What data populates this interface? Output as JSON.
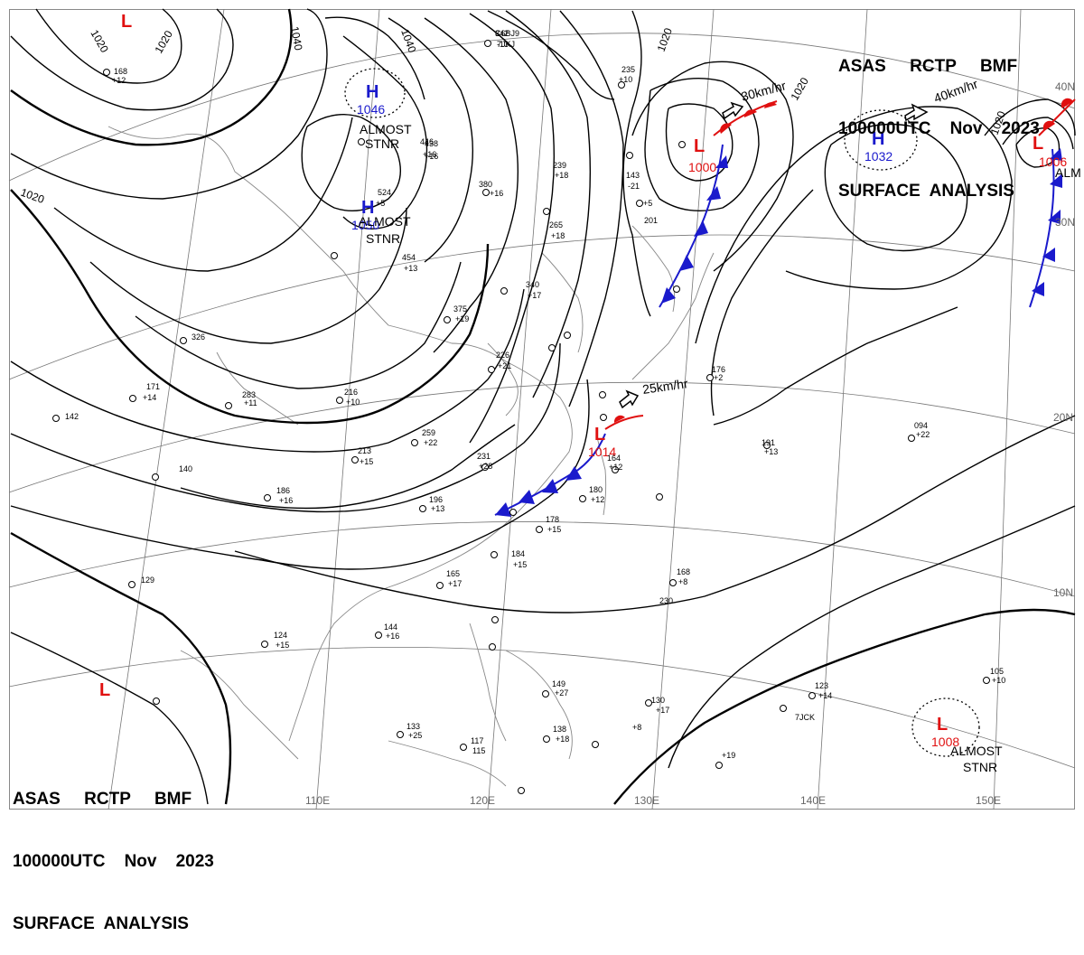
{
  "header_top": {
    "line1": "ASAS     RCTP     BMF",
    "line2": "100000UTC    Nov    2023",
    "line3": "SURFACE  ANALYSIS"
  },
  "header_bottom": {
    "line1": "ASAS     RCTP     BMF",
    "line2": "100000UTC    Nov    2023",
    "line3": "SURFACE  ANALYSIS"
  },
  "pressure_centers": [
    {
      "type": "H",
      "value": "1046",
      "color": "#1a1acc"
    },
    {
      "type": "H",
      "value": "1050",
      "color": "#1a1acc"
    },
    {
      "type": "H",
      "value": "1032",
      "color": "#1a1acc"
    },
    {
      "type": "L",
      "value": "1000",
      "color": "#e01010"
    },
    {
      "type": "L",
      "value": "1014",
      "color": "#e01010"
    },
    {
      "type": "L",
      "value": "1006",
      "color": "#e01010"
    },
    {
      "type": "L",
      "value": "1008",
      "color": "#e01010"
    },
    {
      "type": "L",
      "value": "",
      "color": "#e01010"
    },
    {
      "type": "L",
      "value": "",
      "color": "#e01010"
    }
  ],
  "annotations": {
    "almost_stnr_1": [
      "ALMOST",
      "STNR"
    ],
    "almost_stnr_2": [
      "ALMOST",
      "STNR"
    ],
    "almost_stnr_3": [
      "ALMOST",
      "STNR"
    ],
    "almost_stnr_4": "ALM",
    "speed_1": "30km/hr",
    "speed_2": "40km/hr",
    "speed_3": "25km/hr"
  },
  "isobar_labels": [
    "1020",
    "1020",
    "1040",
    "1040",
    "1020",
    "1020",
    "1020",
    "1020"
  ],
  "lat_labels": [
    "40N",
    "30N",
    "20N",
    "10N"
  ],
  "lon_labels": [
    "110E",
    "120E",
    "130E",
    "140E",
    "150E"
  ],
  "station_values": [
    "342",
    "-13",
    "446",
    "+16",
    "438",
    "+16",
    "524",
    "+5",
    "454",
    "+13",
    "380",
    "+16",
    "239",
    "+18",
    "265",
    "+18",
    "375",
    "+19",
    "340",
    "+17",
    "326",
    "283",
    "+11",
    "216",
    "+10",
    "259",
    "+22",
    "231",
    "+28",
    "213",
    "+15",
    "196",
    "+13",
    "186",
    "+16",
    "171",
    "+14",
    "142",
    "140",
    "226",
    "+21",
    "180",
    "+12",
    "164",
    "+12",
    "178",
    "+15",
    "184",
    "+15",
    "165",
    "+17",
    "168",
    "+8",
    "144",
    "+16",
    "124",
    "+15",
    "129",
    "+19",
    "117",
    "115",
    "133",
    "+25",
    "149",
    "+27",
    "138",
    "+18",
    "130",
    "+17",
    "123",
    "+14",
    "105",
    "+10",
    "094",
    "+22",
    "176",
    "+2",
    "191",
    "+13",
    "201",
    "+5",
    "143",
    "-21",
    "168",
    "+12",
    "235",
    "+10",
    "230",
    "+8",
    "7JCK",
    "C6BJ9",
    "7JKJ"
  ]
}
